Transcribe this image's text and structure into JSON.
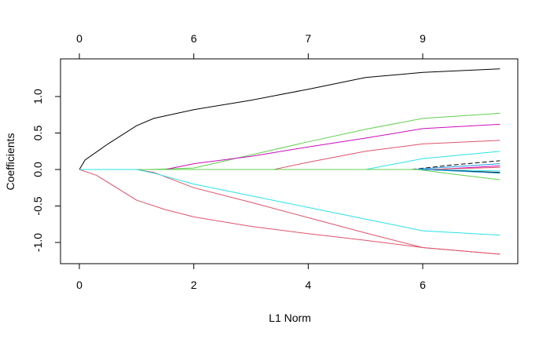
{
  "chart_data": {
    "type": "line",
    "title": "",
    "xlabel": "L1 Norm",
    "ylabel": "Coefficients",
    "xlim": [
      0,
      7.4
    ],
    "ylim": [
      -1.25,
      1.48
    ],
    "x_ticks": [
      0,
      2,
      4,
      6
    ],
    "y_ticks": [
      -1.0,
      -0.5,
      0.0,
      0.5,
      1.0
    ],
    "y_tick_labels": [
      "-1.0",
      "-0.5",
      "0.0",
      "0.5",
      "1.0"
    ],
    "top_axis": {
      "positions": [
        0,
        2,
        4,
        6
      ],
      "labels": [
        "0",
        "6",
        "7",
        "9"
      ]
    },
    "grid": false,
    "legend": "none",
    "series": [
      {
        "color": "#000000",
        "dashed": false,
        "x": [
          0,
          0.1,
          0.5,
          1.0,
          1.3,
          2,
          3,
          4,
          5,
          6,
          7.35
        ],
        "y": [
          0,
          0.13,
          0.35,
          0.6,
          0.7,
          0.82,
          0.95,
          1.1,
          1.26,
          1.33,
          1.38
        ]
      },
      {
        "color": "#61d04f",
        "dashed": false,
        "x": [
          0,
          1.2,
          2,
          3,
          4,
          5,
          6,
          7.35
        ],
        "y": [
          0,
          0,
          0.02,
          0.2,
          0.38,
          0.55,
          0.7,
          0.77
        ]
      },
      {
        "color": "#cd0bbc",
        "dashed": false,
        "x": [
          0,
          1.5,
          2,
          3,
          4,
          5,
          6,
          7.35
        ],
        "y": [
          0,
          0,
          0.08,
          0.18,
          0.31,
          0.43,
          0.56,
          0.62
        ]
      },
      {
        "color": "#df536b",
        "dashed": false,
        "x": [
          0,
          3.4,
          4,
          5,
          6,
          7.35
        ],
        "y": [
          0,
          0,
          0.1,
          0.25,
          0.35,
          0.4
        ]
      },
      {
        "color": "#28e2e5",
        "dashed": false,
        "x": [
          0,
          5.0,
          6,
          7.35
        ],
        "y": [
          0,
          0,
          0.15,
          0.25
        ]
      },
      {
        "color": "#000000",
        "dashed": true,
        "x": [
          0,
          5.8,
          6.5,
          7.35
        ],
        "y": [
          0,
          0,
          0.06,
          0.12
        ]
      },
      {
        "color": "#2297e6",
        "dashed": false,
        "x": [
          0,
          5.8,
          7.35
        ],
        "y": [
          0,
          0,
          0.08
        ]
      },
      {
        "color": "#cd0bbc",
        "dashed": false,
        "x": [
          0,
          6.2,
          7.35
        ],
        "y": [
          0,
          0,
          0.05
        ]
      },
      {
        "color": "#df536b",
        "dashed": false,
        "x": [
          0,
          6.1,
          7.35
        ],
        "y": [
          0,
          0,
          0.03
        ]
      },
      {
        "color": "#28e2e5",
        "dashed": false,
        "x": [
          0,
          6.0,
          7.35
        ],
        "y": [
          0,
          0,
          -0.02
        ]
      },
      {
        "color": "#000000",
        "dashed": false,
        "x": [
          0,
          6.0,
          7.35
        ],
        "y": [
          0,
          0,
          -0.04
        ]
      },
      {
        "color": "#2297e6",
        "dashed": false,
        "x": [
          0,
          6.0,
          7.35
        ],
        "y": [
          0,
          0,
          -0.05
        ]
      },
      {
        "color": "#61d04f",
        "dashed": false,
        "x": [
          0,
          5.9,
          6.5,
          7.35
        ],
        "y": [
          0,
          0,
          -0.06,
          -0.14
        ]
      },
      {
        "color": "#df536b",
        "dashed": false,
        "x": [
          0,
          0.3,
          1.0,
          1.5,
          2,
          3,
          4,
          5,
          6,
          7.35
        ],
        "y": [
          0,
          -0.08,
          -0.42,
          -0.55,
          -0.65,
          -0.78,
          -0.88,
          -0.97,
          -1.07,
          -1.16
        ]
      },
      {
        "color": "#df536b",
        "dashed": false,
        "x": [
          0,
          1.0,
          1.3,
          2,
          3,
          4,
          5,
          6,
          7.35
        ],
        "y": [
          0,
          0,
          -0.04,
          -0.25,
          -0.45,
          -0.66,
          -0.87,
          -1.07,
          -1.16
        ]
      },
      {
        "color": "#28e2e5",
        "dashed": false,
        "x": [
          0,
          1.0,
          1.3,
          2,
          3,
          4,
          5,
          6,
          7.35
        ],
        "y": [
          0,
          0,
          -0.05,
          -0.2,
          -0.36,
          -0.52,
          -0.68,
          -0.84,
          -0.9
        ]
      }
    ]
  }
}
